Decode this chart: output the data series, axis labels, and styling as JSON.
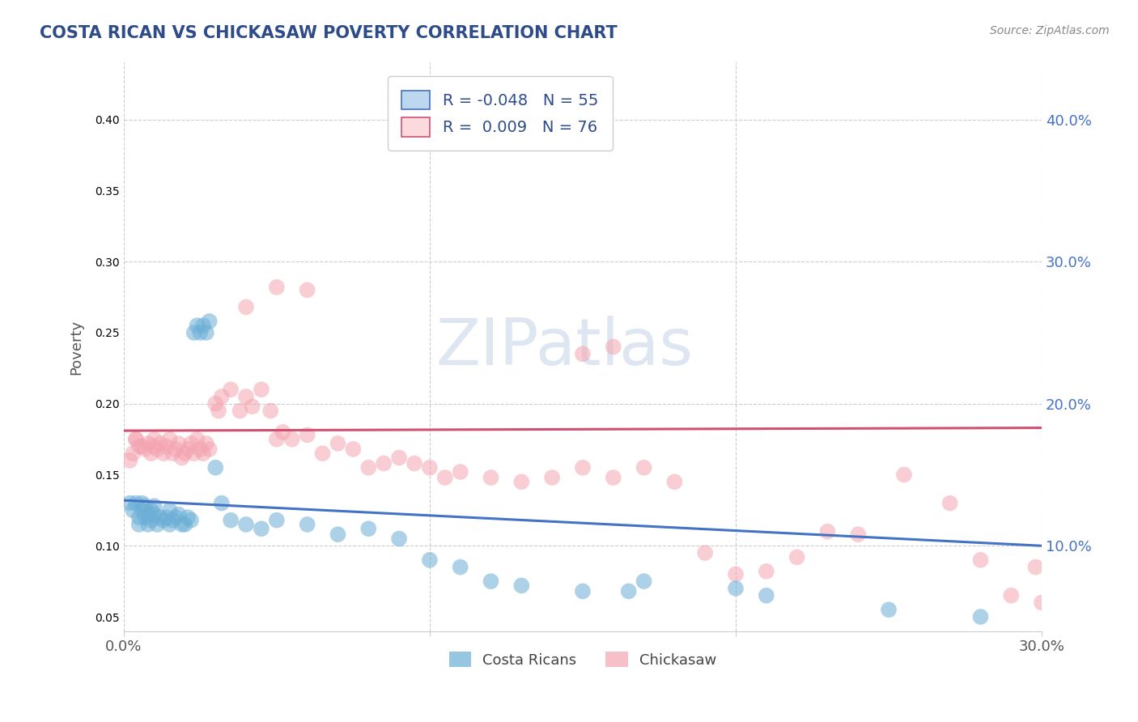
{
  "title": "COSTA RICAN VS CHICKASAW POVERTY CORRELATION CHART",
  "source": "Source: ZipAtlas.com",
  "xlim": [
    0.0,
    0.3
  ],
  "ylim": [
    0.04,
    0.44
  ],
  "blue_R": -0.048,
  "blue_N": 55,
  "pink_R": 0.009,
  "pink_N": 76,
  "blue_color": "#6baed6",
  "blue_fill": "#bdd7ee",
  "pink_color": "#f4a4b0",
  "pink_fill": "#fadadd",
  "blue_line_color": "#4472c4",
  "pink_line_color": "#d05070",
  "axis_label_color": "#4472c4",
  "title_color": "#2e4b8a",
  "source_color": "#888888",
  "ylabel": "Poverty",
  "legend_label_blue": "Costa Ricans",
  "legend_label_pink": "Chickasaw",
  "legend_R_color": "#2e4b8a",
  "watermark": "ZIPatlas",
  "grid_color": "#cccccc",
  "background": "#ffffff",
  "blue_trend_start": 0.132,
  "blue_trend_end": 0.1,
  "pink_trend_start": 0.181,
  "pink_trend_end": 0.183,
  "blue_x": [
    0.002,
    0.003,
    0.004,
    0.005,
    0.005,
    0.006,
    0.006,
    0.007,
    0.007,
    0.008,
    0.008,
    0.009,
    0.009,
    0.01,
    0.01,
    0.011,
    0.012,
    0.013,
    0.014,
    0.015,
    0.015,
    0.016,
    0.017,
    0.018,
    0.019,
    0.02,
    0.021,
    0.022,
    0.023,
    0.024,
    0.025,
    0.026,
    0.027,
    0.028,
    0.03,
    0.032,
    0.035,
    0.04,
    0.045,
    0.05,
    0.06,
    0.07,
    0.08,
    0.09,
    0.1,
    0.11,
    0.12,
    0.13,
    0.15,
    0.165,
    0.17,
    0.2,
    0.21,
    0.25,
    0.28
  ],
  "blue_y": [
    0.13,
    0.125,
    0.13,
    0.115,
    0.12,
    0.125,
    0.13,
    0.12,
    0.128,
    0.115,
    0.122,
    0.118,
    0.125,
    0.122,
    0.128,
    0.115,
    0.12,
    0.118,
    0.12,
    0.125,
    0.115,
    0.118,
    0.12,
    0.122,
    0.115,
    0.115,
    0.12,
    0.118,
    0.25,
    0.255,
    0.25,
    0.255,
    0.25,
    0.258,
    0.155,
    0.13,
    0.118,
    0.115,
    0.112,
    0.118,
    0.115,
    0.108,
    0.112,
    0.105,
    0.09,
    0.085,
    0.075,
    0.072,
    0.068,
    0.068,
    0.075,
    0.07,
    0.065,
    0.055,
    0.05
  ],
  "pink_x": [
    0.002,
    0.003,
    0.004,
    0.004,
    0.005,
    0.006,
    0.007,
    0.008,
    0.009,
    0.01,
    0.01,
    0.011,
    0.012,
    0.013,
    0.014,
    0.015,
    0.016,
    0.017,
    0.018,
    0.019,
    0.02,
    0.021,
    0.022,
    0.023,
    0.024,
    0.025,
    0.026,
    0.027,
    0.028,
    0.03,
    0.031,
    0.032,
    0.035,
    0.038,
    0.04,
    0.042,
    0.045,
    0.048,
    0.05,
    0.052,
    0.055,
    0.06,
    0.065,
    0.07,
    0.075,
    0.08,
    0.085,
    0.09,
    0.095,
    0.1,
    0.105,
    0.11,
    0.12,
    0.13,
    0.14,
    0.15,
    0.16,
    0.17,
    0.18,
    0.19,
    0.2,
    0.21,
    0.22,
    0.23,
    0.24,
    0.255,
    0.27,
    0.28,
    0.29,
    0.298,
    0.04,
    0.05,
    0.06,
    0.15,
    0.16,
    0.3
  ],
  "pink_y": [
    0.16,
    0.165,
    0.175,
    0.175,
    0.17,
    0.17,
    0.168,
    0.172,
    0.165,
    0.175,
    0.17,
    0.168,
    0.172,
    0.165,
    0.17,
    0.175,
    0.165,
    0.168,
    0.172,
    0.162,
    0.165,
    0.168,
    0.172,
    0.165,
    0.175,
    0.168,
    0.165,
    0.172,
    0.168,
    0.2,
    0.195,
    0.205,
    0.21,
    0.195,
    0.205,
    0.198,
    0.21,
    0.195,
    0.175,
    0.18,
    0.175,
    0.178,
    0.165,
    0.172,
    0.168,
    0.155,
    0.158,
    0.162,
    0.158,
    0.155,
    0.148,
    0.152,
    0.148,
    0.145,
    0.148,
    0.155,
    0.148,
    0.155,
    0.145,
    0.095,
    0.08,
    0.082,
    0.092,
    0.11,
    0.108,
    0.15,
    0.13,
    0.09,
    0.065,
    0.085,
    0.268,
    0.282,
    0.28,
    0.235,
    0.24,
    0.06
  ]
}
